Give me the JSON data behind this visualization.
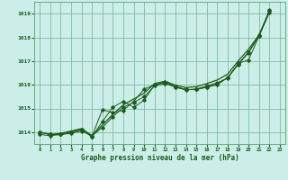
{
  "xlabel": "Graphe pression niveau de la mer (hPa)",
  "xlim": [
    -0.5,
    23.5
  ],
  "ylim": [
    1013.5,
    1019.5
  ],
  "yticks": [
    1014,
    1015,
    1016,
    1017,
    1018,
    1019
  ],
  "xticks": [
    0,
    1,
    2,
    3,
    4,
    5,
    6,
    7,
    8,
    9,
    10,
    11,
    12,
    13,
    14,
    15,
    16,
    17,
    18,
    19,
    20,
    21,
    22,
    23
  ],
  "background_color": "#cceee8",
  "grid_color": "#66aa88",
  "line_color": "#1a5c1a",
  "line_smooth": [
    1013.9,
    1013.85,
    1013.9,
    1013.95,
    1014.05,
    1013.85,
    1014.2,
    1014.65,
    1015.05,
    1015.25,
    1015.5,
    1015.95,
    1016.05,
    1015.9,
    1015.8,
    1015.8,
    1015.9,
    1016.05,
    1016.3,
    1016.85,
    1017.35,
    1018.05,
    1019.05
  ],
  "line_markers1": [
    1014.0,
    1013.9,
    1013.9,
    1014.0,
    1014.1,
    1013.8,
    1014.45,
    1015.05,
    1015.3,
    1015.05,
    1015.35,
    1016.0,
    1016.1,
    1015.9,
    1015.78,
    1015.82,
    1015.95,
    1016.08,
    1016.28,
    1016.88,
    1017.38,
    1018.1,
    1019.12
  ],
  "line_markers2": [
    1014.0,
    1013.9,
    1013.9,
    1014.0,
    1014.1,
    1013.82,
    1014.95,
    1014.82,
    1014.92,
    1015.3,
    1015.82,
    1016.0,
    1016.12,
    1015.92,
    1015.8,
    1015.8,
    1015.9,
    1016.0,
    1016.3,
    1016.9,
    1017.05,
    1018.05,
    1019.15
  ],
  "line_upper": [
    1014.0,
    1013.9,
    1013.95,
    1014.05,
    1014.15,
    1013.85,
    1014.3,
    1014.75,
    1015.15,
    1015.4,
    1015.65,
    1016.05,
    1016.15,
    1015.98,
    1015.88,
    1015.92,
    1016.05,
    1016.2,
    1016.45,
    1017.0,
    1017.5,
    1018.1,
    1019.1
  ]
}
